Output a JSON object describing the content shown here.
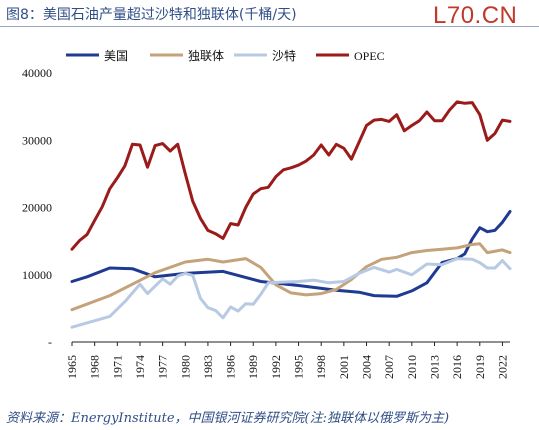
{
  "title": "图8：美国石油产量超过沙特和独联体(千桶/天)",
  "watermark": "L70.CN",
  "source": "资料来源：EnergyInstitute，中国银河证券研究院(注:独联体以俄罗斯为主)",
  "chart_data": {
    "type": "line",
    "title": "",
    "xlabel": "",
    "ylabel": "",
    "ylim": [
      0,
      40000
    ],
    "yticks": [
      {
        "v": 0,
        "label": "-"
      },
      {
        "v": 10000,
        "label": "10000"
      },
      {
        "v": 20000,
        "label": "20000"
      },
      {
        "v": 30000,
        "label": "30000"
      },
      {
        "v": 40000,
        "label": "40000"
      }
    ],
    "xlim": [
      1965,
      2023
    ],
    "xticks": [
      1965,
      1968,
      1971,
      1974,
      1977,
      1980,
      1983,
      1986,
      1989,
      1992,
      1995,
      1998,
      2001,
      2004,
      2007,
      2010,
      2013,
      2016,
      2019,
      2022
    ],
    "xtick_labels": [
      "1965",
      "1968",
      "1971",
      "1974",
      "1977",
      "1980",
      "1983",
      "1986",
      "1989",
      "1992",
      "1995",
      "1998",
      "2001",
      "2004",
      "2007",
      "2010",
      "2013",
      "2016",
      "2019",
      "2022"
    ],
    "legend_position": "top",
    "grid": false,
    "series": [
      {
        "name": "美国",
        "color": "#1f3a93",
        "x": [
          1965,
          1967,
          1970,
          1973,
          1976,
          1980,
          1985,
          1990,
          1995,
          2000,
          2003,
          2005,
          2008,
          2010,
          2012,
          2014,
          2016,
          2017,
          2018,
          2019,
          2020,
          2021,
          2022,
          2023
        ],
        "y": [
          9000,
          9700,
          11000,
          10900,
          9700,
          10200,
          10500,
          9000,
          8400,
          7700,
          7400,
          6900,
          6800,
          7600,
          8800,
          11800,
          12400,
          13100,
          15300,
          17000,
          16400,
          16600,
          17800,
          19400
        ]
      },
      {
        "name": "独联体",
        "color": "#c4a27a",
        "x": [
          1965,
          1970,
          1973,
          1976,
          1980,
          1983,
          1985,
          1988,
          1990,
          1992,
          1994,
          1996,
          1998,
          2000,
          2002,
          2004,
          2006,
          2008,
          2010,
          2012,
          2014,
          2016,
          2018,
          2019,
          2020,
          2022,
          2023
        ],
        "y": [
          4800,
          6900,
          8600,
          10300,
          11900,
          12300,
          11900,
          12400,
          11100,
          8500,
          7300,
          7000,
          7200,
          7800,
          9300,
          11200,
          12300,
          12600,
          13300,
          13600,
          13800,
          14000,
          14500,
          14600,
          13300,
          13700,
          13300
        ]
      },
      {
        "name": "沙特",
        "color": "#b8c9e3",
        "x": [
          1965,
          1970,
          1972,
          1974,
          1975,
          1977,
          1978,
          1979,
          1980,
          1981,
          1982,
          1983,
          1984,
          1985,
          1986,
          1987,
          1988,
          1989,
          1990,
          1991,
          1993,
          1995,
          1997,
          1999,
          2001,
          2003,
          2005,
          2007,
          2008,
          2010,
          2012,
          2014,
          2016,
          2018,
          2019,
          2020,
          2021,
          2022,
          2023
        ],
        "y": [
          2200,
          3800,
          6000,
          8600,
          7200,
          9400,
          8600,
          9800,
          10200,
          9900,
          6500,
          5100,
          4700,
          3600,
          5200,
          4600,
          5700,
          5600,
          7100,
          8800,
          8900,
          9000,
          9200,
          8800,
          9000,
          10200,
          11100,
          10400,
          10800,
          10000,
          11600,
          11500,
          12400,
          12300,
          11800,
          11000,
          11000,
          12100,
          10900
        ]
      },
      {
        "name": "OPEC",
        "color": "#9b1a1a",
        "x": [
          1965,
          1966,
          1967,
          1968,
          1969,
          1970,
          1971,
          1972,
          1973,
          1974,
          1975,
          1976,
          1977,
          1978,
          1979,
          1980,
          1981,
          1982,
          1983,
          1984,
          1985,
          1986,
          1987,
          1988,
          1989,
          1990,
          1991,
          1992,
          1993,
          1994,
          1995,
          1996,
          1997,
          1998,
          1999,
          2000,
          2001,
          2002,
          2003,
          2004,
          2005,
          2006,
          2007,
          2008,
          2009,
          2010,
          2011,
          2012,
          2013,
          2014,
          2015,
          2016,
          2017,
          2018,
          2019,
          2020,
          2021,
          2022,
          2023
        ],
        "y": [
          13800,
          15100,
          16000,
          18100,
          20100,
          22800,
          24400,
          26200,
          29400,
          29300,
          26000,
          29200,
          29500,
          28400,
          29400,
          25000,
          20900,
          18400,
          16600,
          16100,
          15400,
          17600,
          17400,
          20000,
          22000,
          22800,
          23000,
          24600,
          25600,
          25900,
          26300,
          26900,
          27800,
          29300,
          27800,
          29400,
          28800,
          27200,
          29700,
          32200,
          33000,
          33100,
          32800,
          33800,
          31400,
          32200,
          32900,
          34200,
          32900,
          32900,
          34500,
          35700,
          35500,
          35600,
          33800,
          30000,
          31000,
          33000,
          32800
        ]
      }
    ]
  }
}
